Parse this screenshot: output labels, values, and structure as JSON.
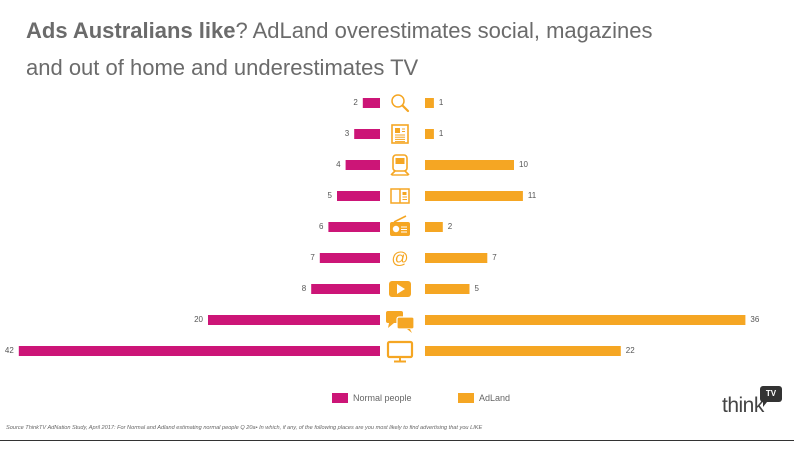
{
  "title": {
    "bold": "Ads Australians like",
    "rest_line1": "? AdLand overestimates social, magazines",
    "line2": "and out of home and underestimates TV"
  },
  "colors": {
    "normal": "#cc1577",
    "adland": "#f5a623",
    "icon": "#f5a623"
  },
  "chart_data": {
    "type": "bar",
    "categories": [
      "search-icon",
      "newspaper-icon",
      "transit-icon",
      "magazine-icon",
      "radio-icon",
      "email-icon",
      "online-video-icon",
      "social-chat-icon",
      "tv-icon"
    ],
    "series": [
      {
        "name": "Normal people",
        "values": [
          2,
          3,
          4,
          5,
          6,
          7,
          8,
          20,
          42
        ]
      },
      {
        "name": "AdLand",
        "values": [
          1,
          1,
          10,
          11,
          2,
          7,
          5,
          36,
          22
        ]
      }
    ],
    "legend": "bottom-center"
  },
  "legend": {
    "normal_label": "Normal people",
    "adland_label": "AdLand"
  },
  "source": "Source ThinkTV AdNation Study, April 2017: For  Normal and Adland estimating normal people Q 20a• In which, if any, of the following places are you most likely to find advertising that you LIKE",
  "logo": {
    "word": "think",
    "badge": "TV"
  }
}
